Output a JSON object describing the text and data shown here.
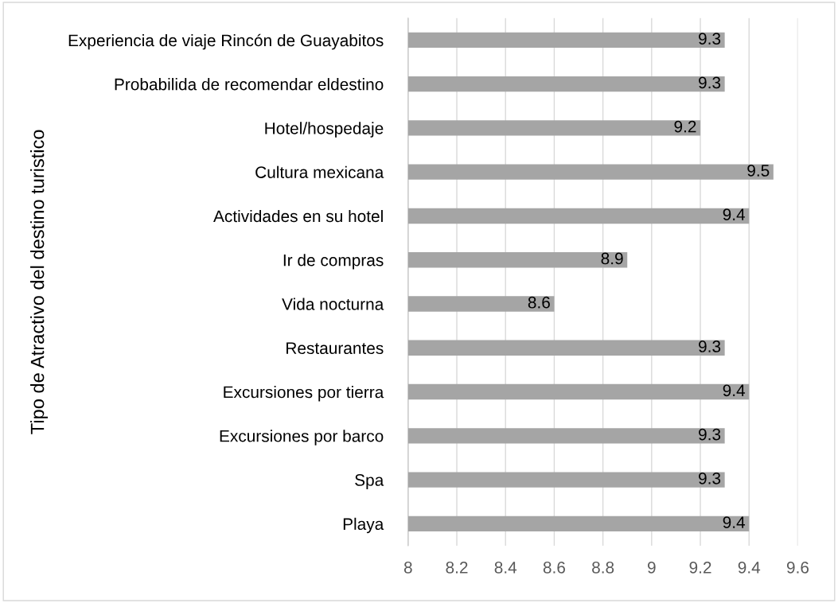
{
  "chart_data": {
    "type": "bar",
    "orientation": "horizontal",
    "ylabel": "Tipo de Atractivo del destino turistico",
    "categories": [
      "Experiencia de viaje Rincón de Guayabitos",
      "Probabilida de recomendar eldestino",
      "Hotel/hospedaje",
      "Cultura mexicana",
      "Actividades en su hotel",
      "Ir de compras",
      "Vida nocturna",
      "Restaurantes",
      "Excursiones por tierra",
      "Excursiones por barco",
      "Spa",
      "Playa"
    ],
    "values": [
      9.3,
      9.3,
      9.2,
      9.5,
      9.4,
      8.9,
      8.6,
      9.3,
      9.4,
      9.3,
      9.3,
      9.4
    ],
    "color": "#a5a5a5",
    "xlim": [
      8,
      9.6
    ],
    "xticks": [
      8,
      8.2,
      8.4,
      8.6,
      8.8,
      9,
      9.2,
      9.4,
      9.6
    ],
    "grid": "x",
    "data_labels": true,
    "legend": false
  }
}
